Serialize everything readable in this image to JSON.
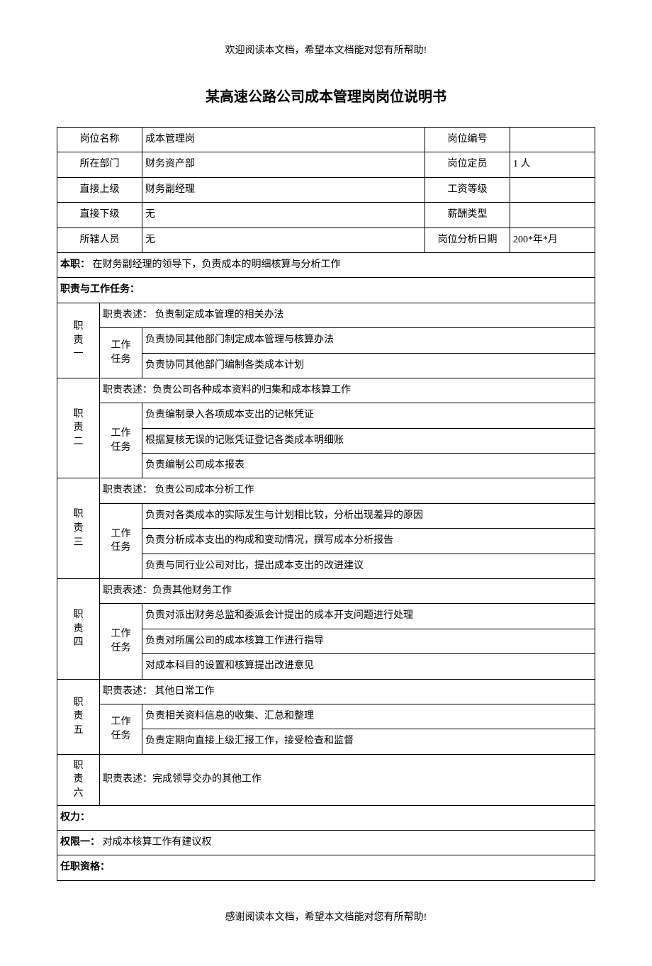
{
  "header_note": "欢迎阅读本文档，希望本文档能对您有所帮助!",
  "footer_note": "感谢阅读本文档，希望本文档能对您有所帮助!",
  "title": "某高速公路公司成本管理岗岗位说明书",
  "labels": {
    "post_name": "岗位名称",
    "post_code": "岗位编号",
    "department": "所在部门",
    "headcount": "岗位定员",
    "supervisor": "直接上级",
    "wage_grade": "工资等级",
    "subordinate": "直接下级",
    "salary_type": "薪酬类型",
    "staff": "所辖人员",
    "analysis_date": "岗位分析日期",
    "main_duty_label": "本职：",
    "duties_section": "职责与工作任务：",
    "duty_desc_label": "职责表述：",
    "task_label": "工作任务",
    "authority_section": "权力：",
    "authority_one_label": "权限一：",
    "qualification_section": "任职资格："
  },
  "fields": {
    "post_name": "成本管理岗",
    "post_code": "",
    "department": "财务资产部",
    "headcount": "1 人",
    "supervisor": "财务副经理",
    "wage_grade": "",
    "subordinate": "无",
    "salary_type": "",
    "staff": "无",
    "analysis_date": "200*年*月"
  },
  "main_duty": "在财务副经理的领导下，负责成本的明细核算与分析工作",
  "duties": [
    {
      "num": "职责一",
      "desc": "负责制定成本管理的相关办法",
      "tasks": [
        "负责协同其他部门制定成本管理与核算办法",
        "负责协同其他部门编制各类成本计划"
      ]
    },
    {
      "num": "职责二",
      "desc": "负责公司各种成本资料的归集和成本核算工作",
      "tasks": [
        "负责编制录入各项成本支出的记帐凭证",
        "根据复核无误的记账凭证登记各类成本明细账",
        "负责编制公司成本报表"
      ]
    },
    {
      "num": "职责三",
      "desc": "负责公司成本分析工作",
      "tasks": [
        "负责对各类成本的实际发生与计划相比较，分析出现差异的原因",
        "负责分析成本支出的构成和变动情况，撰写成本分析报告",
        "负责与同行业公司对比，提出成本支出的改进建议"
      ]
    },
    {
      "num": "职责四",
      "desc": "负责其他财务工作",
      "tasks": [
        "负责对派出财务总监和委派会计提出的成本开支问题进行处理",
        "负责对所属公司的成本核算工作进行指导",
        "对成本科目的设置和核算提出改进意见"
      ]
    },
    {
      "num": "职责五",
      "desc": "其他日常工作",
      "tasks": [
        "负责相关资料信息的收集、汇总和整理",
        "负责定期向直接上级汇报工作，接受检查和监督"
      ]
    },
    {
      "num": "职责六",
      "desc": "完成领导交办的其他工作",
      "tasks": []
    }
  ],
  "authority_one": "对成本核算工作有建议权"
}
